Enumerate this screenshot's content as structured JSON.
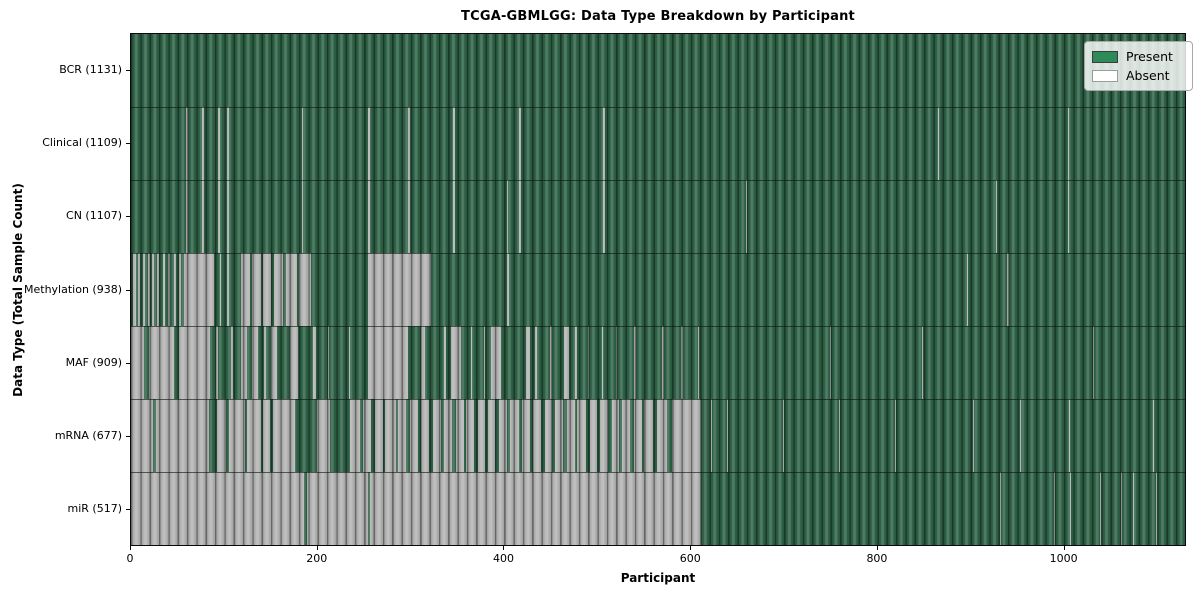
{
  "title": "TCGA-GBMLGG: Data Type Breakdown by Participant",
  "legend": {
    "items": [
      {
        "label": "Present",
        "color": "#2e8b57"
      },
      {
        "label": "Absent",
        "color": "#ffffff"
      }
    ]
  },
  "colors": {
    "present_true": "#2e8b57",
    "present_rendered": "#2d6045",
    "absent_true": "#ffffff",
    "absent_rendered": "#b2b2b2",
    "bar_edge": "#1d3a2b",
    "axes_edge": "#0a0a0a",
    "legend_border": "#a8a8a8",
    "background": "#ffffff"
  },
  "chart_data": {
    "type": "heatmap",
    "title": "TCGA-GBMLGG: Data Type Breakdown by Participant",
    "xlabel": "Participant",
    "ylabel": "Data Type (Total Sample Count)",
    "x_ticks": [
      0,
      200,
      400,
      600,
      800,
      1000
    ],
    "x_range": [
      0,
      1131
    ],
    "n_participants": 1131,
    "grid": false,
    "legend_position": "upper right",
    "legend_entries": [
      "Present",
      "Absent"
    ],
    "rows": [
      {
        "name": "BCR",
        "label": "BCR (1131)",
        "present_count": 1131,
        "absent_count": 0,
        "absent_segments": []
      },
      {
        "name": "Clinical",
        "label": "Clinical (1109)",
        "present_count": 1109,
        "absent_count": 22,
        "absent_segments": [
          [
            59,
            61
          ],
          [
            76,
            78
          ],
          [
            93,
            95
          ],
          [
            103,
            105
          ],
          [
            183,
            185
          ],
          [
            254,
            256
          ],
          [
            297,
            299
          ],
          [
            346,
            348
          ],
          [
            416,
            418
          ],
          [
            507,
            509
          ],
          [
            866,
            867
          ],
          [
            1005,
            1006
          ]
        ]
      },
      {
        "name": "CN",
        "label": "CN (1107)",
        "present_count": 1107,
        "absent_count": 24,
        "absent_segments": [
          [
            59,
            61
          ],
          [
            76,
            78
          ],
          [
            93,
            95
          ],
          [
            103,
            105
          ],
          [
            183,
            185
          ],
          [
            254,
            256
          ],
          [
            297,
            299
          ],
          [
            346,
            348
          ],
          [
            404,
            405
          ],
          [
            416,
            418
          ],
          [
            507,
            509
          ],
          [
            660,
            661
          ],
          [
            928,
            929
          ],
          [
            1005,
            1006
          ]
        ]
      },
      {
        "name": "Methylation",
        "label": "Methylation (938)",
        "present_count": 938,
        "absent_count": 193,
        "absent_segments": [
          [
            2,
            5
          ],
          [
            8,
            10
          ],
          [
            13,
            15
          ],
          [
            18,
            20
          ],
          [
            23,
            25
          ],
          [
            28,
            30
          ],
          [
            34,
            36
          ],
          [
            40,
            42
          ],
          [
            46,
            48
          ],
          [
            52,
            54
          ],
          [
            57,
            89
          ],
          [
            95,
            97
          ],
          [
            103,
            105
          ],
          [
            118,
            128
          ],
          [
            130,
            140
          ],
          [
            142,
            150
          ],
          [
            153,
            163
          ],
          [
            166,
            178
          ],
          [
            180,
            193
          ],
          [
            254,
            322
          ],
          [
            404,
            406
          ],
          [
            897,
            898
          ],
          [
            940,
            942
          ]
        ]
      },
      {
        "name": "MAF",
        "label": "MAF (909)",
        "present_count": 909,
        "absent_count": 222,
        "absent_segments": [
          [
            0,
            14
          ],
          [
            19,
            46
          ],
          [
            51,
            85
          ],
          [
            91,
            93
          ],
          [
            107,
            109
          ],
          [
            118,
            125
          ],
          [
            130,
            136
          ],
          [
            143,
            145
          ],
          [
            150,
            157
          ],
          [
            171,
            179
          ],
          [
            195,
            198
          ],
          [
            211,
            212
          ],
          [
            234,
            235
          ],
          [
            254,
            297
          ],
          [
            311,
            316
          ],
          [
            336,
            338
          ],
          [
            343,
            354
          ],
          [
            365,
            366
          ],
          [
            379,
            380
          ],
          [
            386,
            397
          ],
          [
            424,
            428
          ],
          [
            433,
            436
          ],
          [
            450,
            452
          ],
          [
            465,
            470
          ],
          [
            476,
            479
          ],
          [
            490,
            492
          ],
          [
            505,
            507
          ],
          [
            520,
            522
          ],
          [
            540,
            542
          ],
          [
            570,
            572
          ],
          [
            590,
            592
          ],
          [
            608,
            610
          ],
          [
            750,
            751
          ],
          [
            849,
            850
          ],
          [
            1032,
            1033
          ]
        ]
      },
      {
        "name": "mRNA",
        "label": "mRNA (677)",
        "present_count": 677,
        "absent_count": 454,
        "absent_segments": [
          [
            0,
            24
          ],
          [
            27,
            84
          ],
          [
            92,
            102
          ],
          [
            105,
            122
          ],
          [
            125,
            139
          ],
          [
            142,
            149
          ],
          [
            152,
            176
          ],
          [
            200,
            214
          ],
          [
            235,
            246
          ],
          [
            249,
            258
          ],
          [
            262,
            270
          ],
          [
            273,
            284
          ],
          [
            287,
            295
          ],
          [
            299,
            308
          ],
          [
            311,
            320
          ],
          [
            324,
            333
          ],
          [
            336,
            345
          ],
          [
            349,
            357
          ],
          [
            360,
            368
          ],
          [
            372,
            380
          ],
          [
            383,
            391
          ],
          [
            395,
            404
          ],
          [
            407,
            416
          ],
          [
            420,
            428
          ],
          [
            431,
            440
          ],
          [
            444,
            452
          ],
          [
            455,
            464
          ],
          [
            468,
            476
          ],
          [
            479,
            488
          ],
          [
            492,
            500
          ],
          [
            503,
            512
          ],
          [
            516,
            524
          ],
          [
            527,
            536
          ],
          [
            540,
            548
          ],
          [
            551,
            560
          ],
          [
            564,
            575
          ],
          [
            580,
            612
          ],
          [
            622,
            623
          ],
          [
            640,
            641
          ],
          [
            700,
            701
          ],
          [
            760,
            761
          ],
          [
            820,
            821
          ],
          [
            904,
            905
          ],
          [
            954,
            955
          ],
          [
            1006,
            1007
          ],
          [
            1097,
            1098
          ]
        ]
      },
      {
        "name": "miR",
        "label": "miR (517)",
        "present_count": 517,
        "absent_count": 614,
        "absent_segments": [
          [
            0,
            186
          ],
          [
            189,
            254
          ],
          [
            256,
            612
          ],
          [
            933,
            934
          ],
          [
            990,
            991
          ],
          [
            1008,
            1009
          ],
          [
            1040,
            1041
          ],
          [
            1062,
            1063
          ],
          [
            1075,
            1076
          ],
          [
            1100,
            1101
          ]
        ]
      }
    ]
  }
}
